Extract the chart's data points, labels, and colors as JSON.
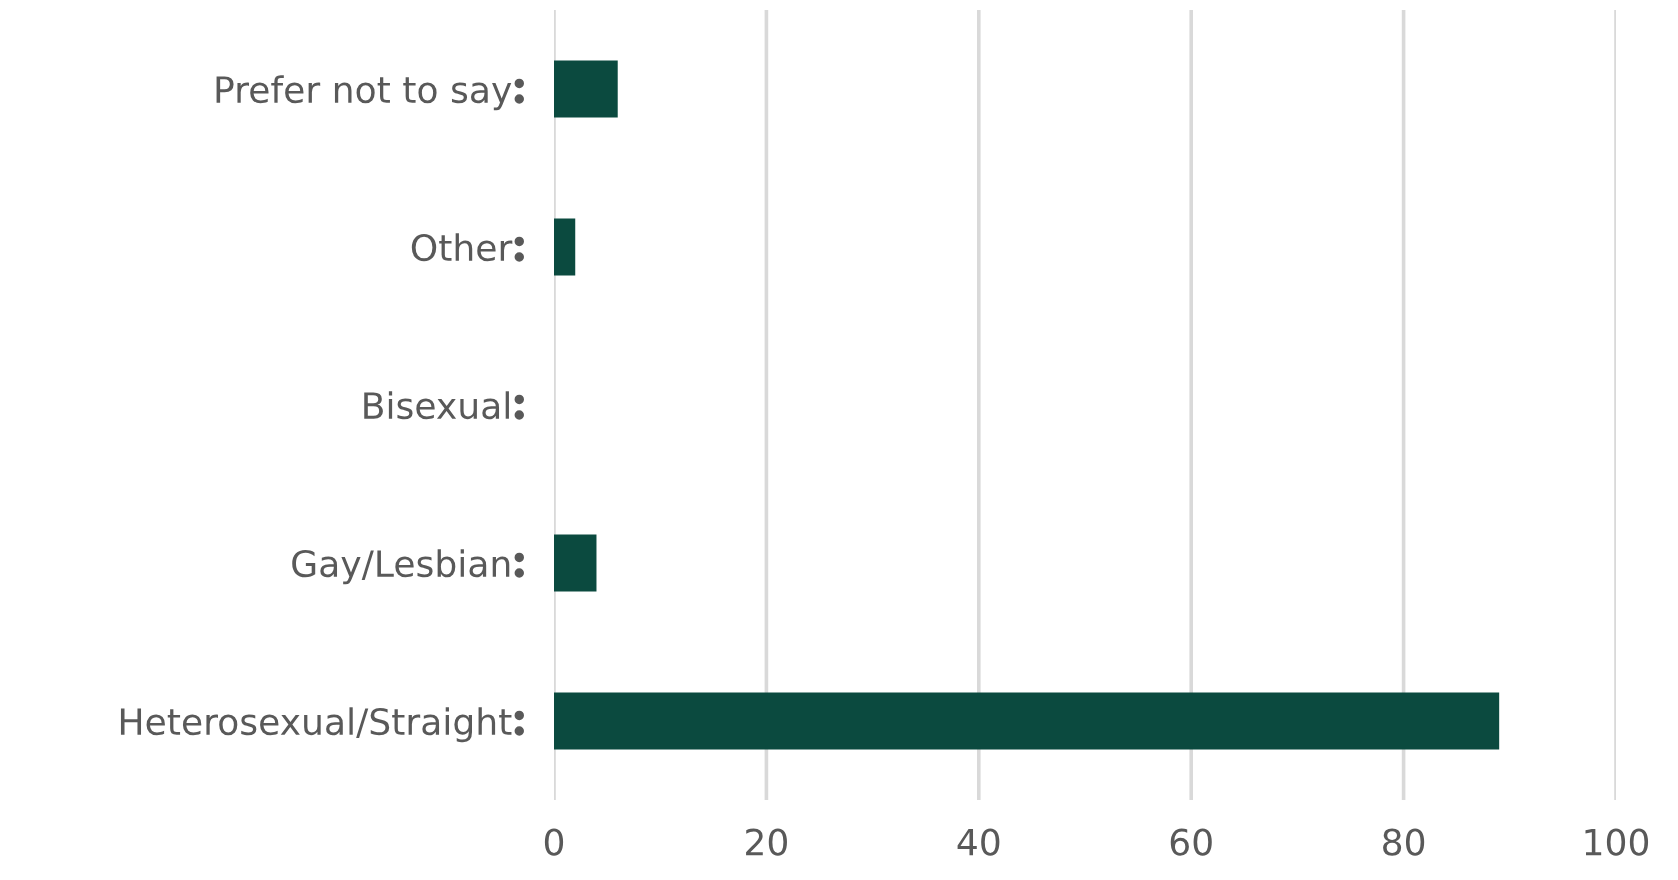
{
  "chart_data": {
    "type": "bar",
    "orientation": "horizontal",
    "categories": [
      "Prefer not to say",
      "Other",
      "Bisexual",
      "Gay/Lesbian",
      "Heterosexual/Straight"
    ],
    "values": [
      6,
      2,
      0,
      4,
      89
    ],
    "color": "#0b4a3f",
    "xlim": [
      0,
      100
    ],
    "xticks": [
      0,
      20,
      40,
      60,
      80,
      100
    ],
    "grid": "x",
    "legend": false
  }
}
